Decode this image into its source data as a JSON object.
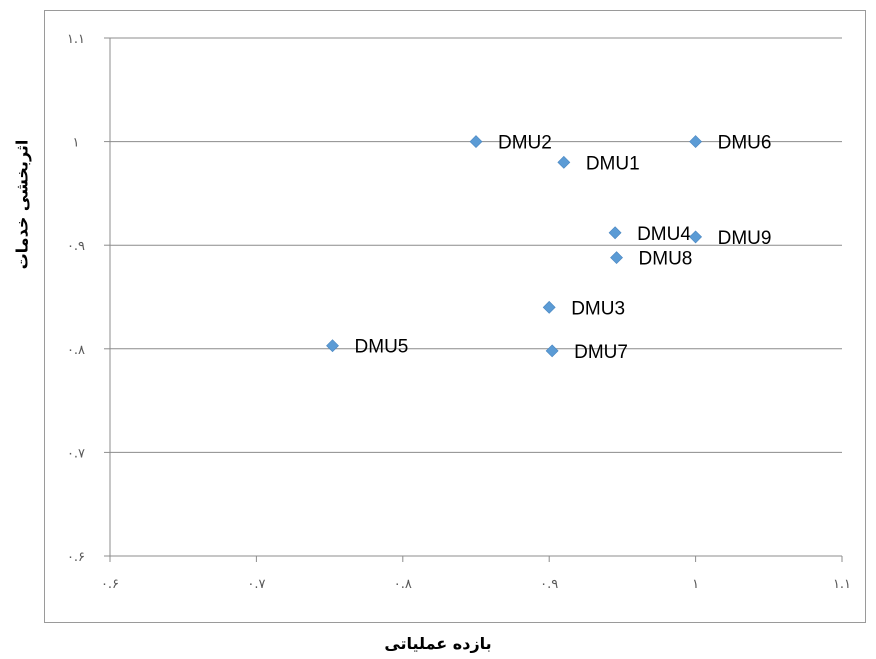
{
  "chart_data": {
    "type": "scatter",
    "xlabel": "بازده عملیاتی",
    "ylabel": "اثربخشی خدمات",
    "xlim": [
      0.6,
      1.1
    ],
    "ylim": [
      0.6,
      1.1
    ],
    "x_ticks": [
      0.6,
      0.7,
      0.8,
      0.9,
      1.0,
      1.1
    ],
    "y_ticks": [
      0.6,
      0.7,
      0.8,
      0.9,
      1.0,
      1.1
    ],
    "x_tick_labels": [
      "۰.۶",
      "۰.۷",
      "۰.۸",
      "۰.۹",
      "۱",
      "۱.۱"
    ],
    "y_tick_labels": [
      "۰.۶",
      "۰.۷",
      "۰.۸",
      "۰.۹",
      "۱",
      "۱.۱"
    ],
    "grid": "horizontal",
    "marker_color": "#5b9bd5",
    "points": [
      {
        "label": "DMU1",
        "x": 0.91,
        "y": 0.98
      },
      {
        "label": "DMU2",
        "x": 0.85,
        "y": 1.0
      },
      {
        "label": "DMU3",
        "x": 0.9,
        "y": 0.84
      },
      {
        "label": "DMU4",
        "x": 0.945,
        "y": 0.912
      },
      {
        "label": "DMU5",
        "x": 0.752,
        "y": 0.803
      },
      {
        "label": "DMU6",
        "x": 1.0,
        "y": 1.0
      },
      {
        "label": "DMU7",
        "x": 0.902,
        "y": 0.798
      },
      {
        "label": "DMU8",
        "x": 0.946,
        "y": 0.888
      },
      {
        "label": "DMU9",
        "x": 1.0,
        "y": 0.908
      }
    ]
  }
}
